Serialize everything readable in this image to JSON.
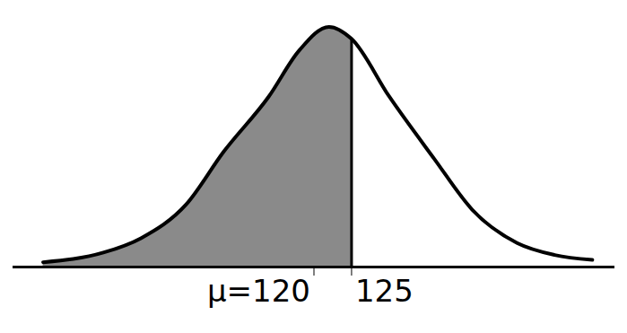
{
  "chart_data": {
    "type": "area",
    "x": [
      84,
      92,
      97,
      103,
      108,
      114,
      118,
      122,
      125,
      130,
      136,
      141,
      147,
      152,
      157
    ],
    "values": [
      2,
      6,
      12,
      26,
      48,
      71,
      90,
      100,
      95,
      71,
      45,
      24,
      10,
      5,
      3
    ],
    "shade_to": 125,
    "xlim": [
      80,
      160
    ],
    "ylim": [
      0,
      105
    ],
    "xticks": [
      {
        "value": 120,
        "label": "μ=120"
      },
      125
    ],
    "tick_labels": "x",
    "color": "#000000"
  }
}
